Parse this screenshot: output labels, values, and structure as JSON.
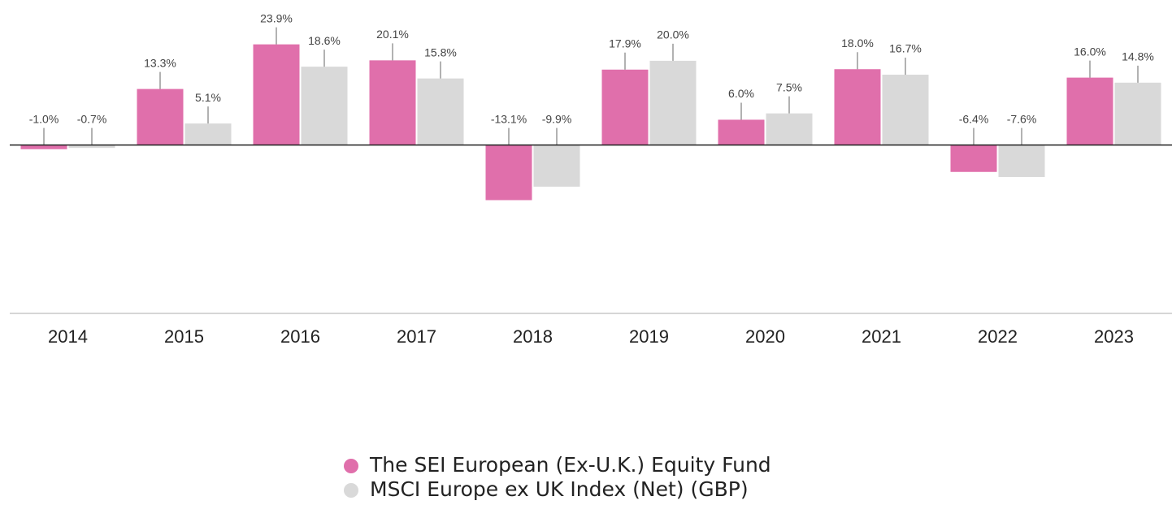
{
  "chart_data": {
    "type": "bar",
    "categories": [
      "2014",
      "2015",
      "2016",
      "2017",
      "2018",
      "2019",
      "2020",
      "2021",
      "2022",
      "2023"
    ],
    "series": [
      {
        "name": "The SEI European (Ex-U.K.) Equity Fund",
        "color": "#e06fab",
        "values": [
          -1.0,
          13.3,
          23.9,
          20.1,
          -13.1,
          17.9,
          6.0,
          18.0,
          -6.4,
          16.0
        ],
        "value_labels": [
          "-1.0%",
          "13.3%",
          "23.9%",
          "20.1%",
          "-13.1%",
          "17.9%",
          "6.0%",
          "18.0%",
          "-6.4%",
          "16.0%"
        ]
      },
      {
        "name": "MSCI Europe ex UK Index (Net) (GBP)",
        "color": "#d9d9d9",
        "values": [
          -0.7,
          5.1,
          18.6,
          15.8,
          -9.9,
          20.0,
          7.5,
          16.7,
          -7.6,
          14.8
        ],
        "value_labels": [
          "-0.7%",
          "5.1%",
          "18.6%",
          "15.8%",
          "-9.9%",
          "20.0%",
          "7.5%",
          "16.7%",
          "-7.6%",
          "14.8%"
        ]
      }
    ],
    "ylim": [
      -40,
      30
    ]
  }
}
